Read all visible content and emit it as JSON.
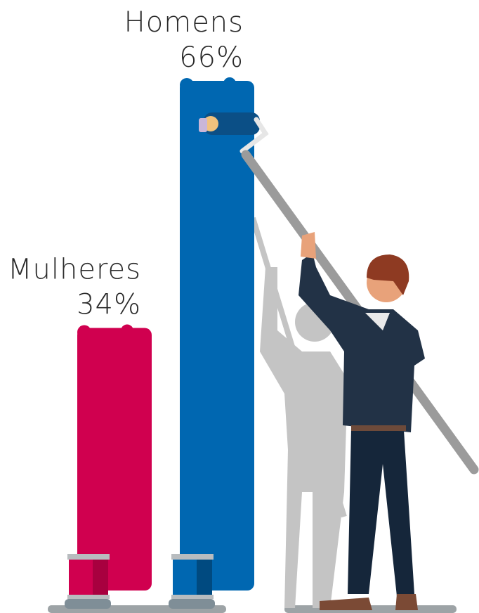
{
  "chart_data": {
    "type": "bar",
    "categories": [
      "Mulheres",
      "Homens"
    ],
    "values": [
      34,
      66
    ],
    "value_labels": [
      "34%",
      "66%"
    ],
    "colors": [
      "#d0004f",
      "#0067b1"
    ]
  }
}
